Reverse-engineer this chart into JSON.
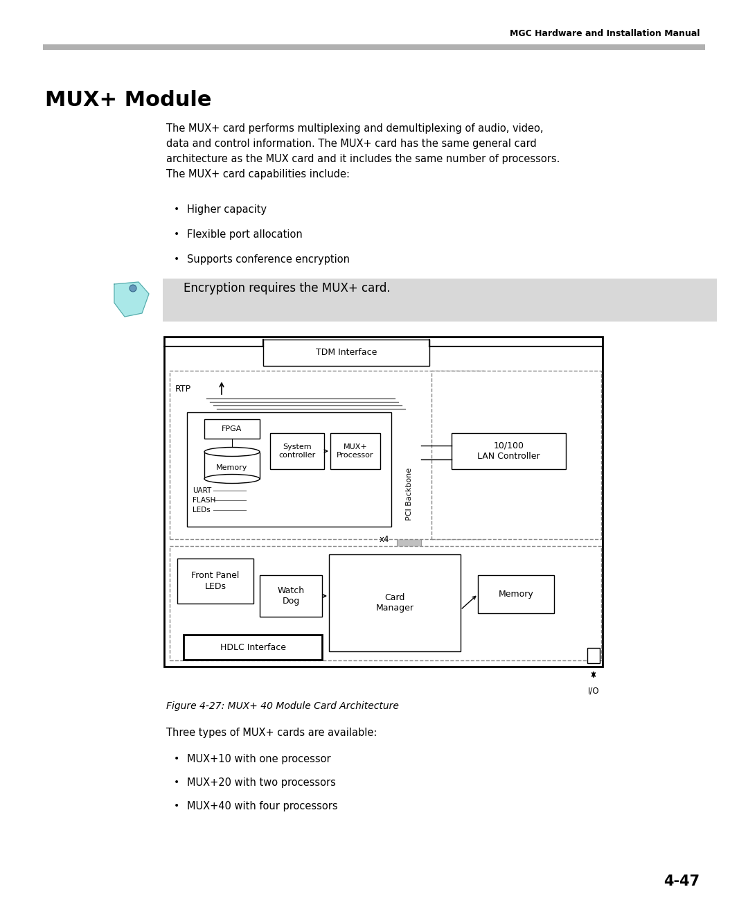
{
  "header_text": "MGC Hardware and Installation Manual",
  "title": "MUX+ Module",
  "body_text_lines": [
    "The MUX+ card performs multiplexing and demultiplexing of audio, video,",
    "data and control information. The MUX+ card has the same general card",
    "architecture as the MUX card and it includes the same number of processors.",
    "The MUX+ card capabilities include:"
  ],
  "bullets1": [
    "Higher capacity",
    "Flexible port allocation",
    "Supports conference encryption"
  ],
  "note_text": "Encryption requires the MUX+ card.",
  "figure_caption": "Figure 4-27: MUX+ 40 Module Card Architecture",
  "body_text2": "Three types of MUX+ cards are available:",
  "bullets2": [
    "MUX+10 with one processor",
    "MUX+20 with two processors",
    "MUX+40 with four processors"
  ],
  "page_number": "4-47",
  "bg_color": "#ffffff",
  "note_bg": "#d8d8d8",
  "line_color": "#aaaaaa",
  "box_edge": "#000000",
  "dashed_color": "#888888",
  "pci_fill": "#c0c0c0"
}
